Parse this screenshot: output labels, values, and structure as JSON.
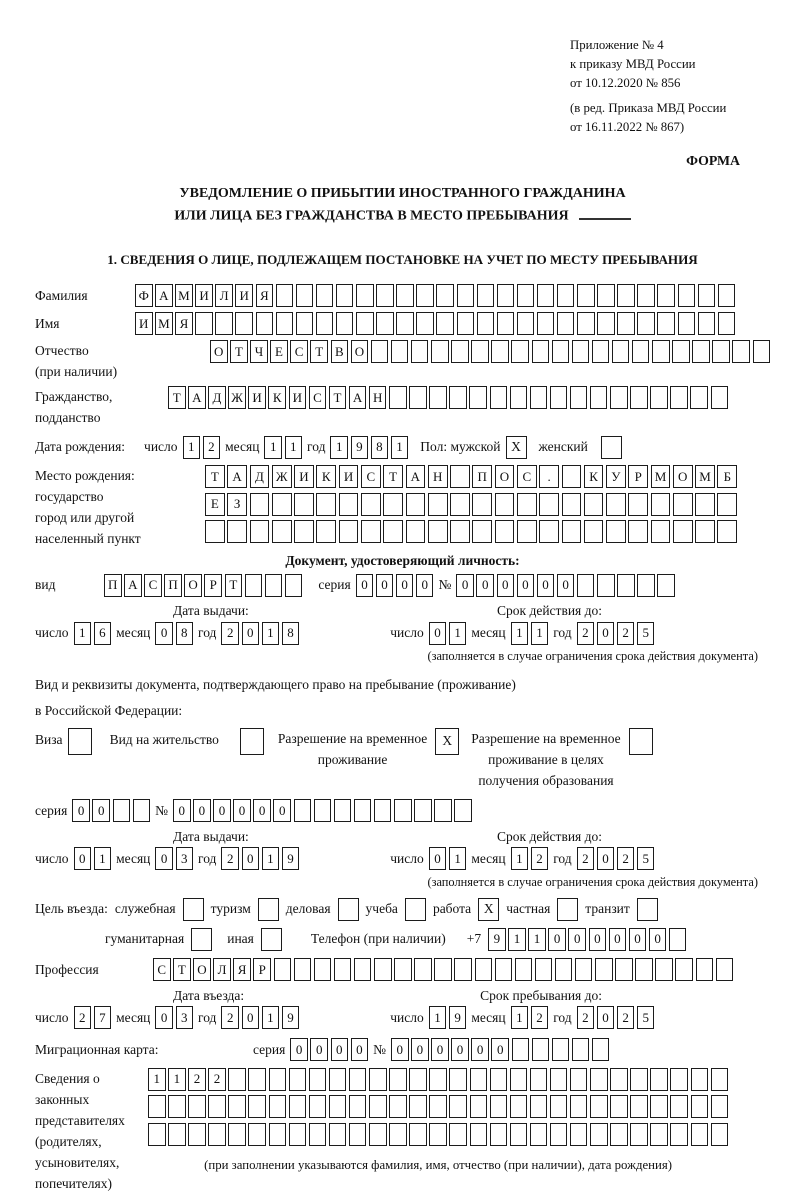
{
  "header": {
    "line1": "Приложение № 4",
    "line2": "к приказу МВД России",
    "line3": "от 10.12.2020 № 856",
    "line4": "(в ред. Приказа МВД России",
    "line5": "от 16.11.2022 № 867)",
    "forma": "ФОРМА"
  },
  "title": {
    "line1": "УВЕДОМЛЕНИЕ О ПРИБЫТИИ ИНОСТРАННОГО ГРАЖДАНИНА",
    "line2": "ИЛИ ЛИЦА БЕЗ ГРАЖДАНСТВА В МЕСТО ПРЕБЫВАНИЯ"
  },
  "section1": "1. СВЕДЕНИЯ О ЛИЦЕ, ПОДЛЕЖАЩЕМ ПОСТАНОВКЕ НА УЧЕТ ПО МЕСТУ ПРЕБЫВАНИЯ",
  "labels": {
    "surname": "Фамилия",
    "given_name": "Имя",
    "patronymic": "Отчество",
    "patronymic_note": "(при наличии)",
    "citizenship1": "Гражданство,",
    "citizenship2": "подданство",
    "birth_date": "Дата рождения:",
    "day": "число",
    "month": "месяц",
    "year": "год",
    "gender": "Пол: мужской",
    "female": "женский",
    "birthplace": "Место рождения:",
    "state": "государство",
    "city1": "город или другой",
    "city2": "населенный пункт",
    "id_doc_heading": "Документ, удостоверяющий личность:",
    "doc_type": "вид",
    "series": "серия",
    "number": "№",
    "issue_date": "Дата выдачи:",
    "expiry_date": "Срок действия до:",
    "expiry_note": "(заполняется в случае ограничения срока действия документа)",
    "res_doc_line1": "Вид и реквизиты документа, подтверждающего право на пребывание (проживание)",
    "res_doc_line2": "в Российской Федерации:",
    "visa": "Виза",
    "residence_permit": "Вид на жительство",
    "temp_res_1": "Разрешение на временное",
    "temp_res_2": "проживание",
    "temp_res_edu_1": "Разрешение на временное",
    "temp_res_edu_2": "проживание в целях",
    "temp_res_edu_3": "получения образования",
    "purpose": "Цель въезда:",
    "p_business": "служебная",
    "p_tourism": "туризм",
    "p_commercial": "деловая",
    "p_study": "учеба",
    "p_work": "работа",
    "p_private": "частная",
    "p_transit": "транзит",
    "p_humanitarian": "гуманитарная",
    "p_other": "иная",
    "phone": "Телефон (при наличии)",
    "phone_prefix": "+7",
    "profession": "Профессия",
    "entry_date": "Дата въезда:",
    "stay_until": "Срок пребывания до:",
    "mig_card": "Миграционная карта:",
    "rep1": "Сведения о",
    "rep2": "законных",
    "rep3": "представителях",
    "rep4": "(родителях,",
    "rep5": "усыновителях,",
    "rep6": "попечителях)",
    "rep_note": "(при заполнении указываются фамилия, имя, отчество (при наличии), дата рождения)"
  },
  "boxes": {
    "surname": {
      "value": "ФАМИЛИЯ",
      "count": 30
    },
    "given_name": {
      "value": "ИМЯ",
      "count": 30
    },
    "patronymic": {
      "value": "ОТЧЕСТВО",
      "count": 28
    },
    "citizenship": {
      "value": "ТАДЖИКИСТАН",
      "count": 28
    },
    "birth_day": {
      "value": "12",
      "count": 2
    },
    "birth_month": {
      "value": "11",
      "count": 2
    },
    "birth_year": {
      "value": "1981",
      "count": 4
    },
    "birthplace_row1": {
      "value": "ТАДЖИКИСТАН ПОС. КУРМОМБ",
      "count": 24
    },
    "birthplace_row2": {
      "value": "ЕЗ",
      "count": 24
    },
    "birthplace_row3": {
      "value": "",
      "count": 24
    },
    "id_doc_type": {
      "value": "ПАСПОРТ",
      "count": 10
    },
    "id_doc_series": {
      "value": "0000",
      "count": 4
    },
    "id_doc_number": {
      "value": "000000",
      "count": 11
    },
    "id_issue_day": {
      "value": "16",
      "count": 2
    },
    "id_issue_month": {
      "value": "08",
      "count": 2
    },
    "id_issue_year": {
      "value": "2018",
      "count": 4
    },
    "id_expiry_day": {
      "value": "01",
      "count": 2
    },
    "id_expiry_month": {
      "value": "11",
      "count": 2
    },
    "id_expiry_year": {
      "value": "2025",
      "count": 4
    },
    "res_series": {
      "value": "00",
      "count": 4
    },
    "res_number": {
      "value": "000000",
      "count": 15
    },
    "res_issue_day": {
      "value": "01",
      "count": 2
    },
    "res_issue_month": {
      "value": "03",
      "count": 2
    },
    "res_issue_year": {
      "value": "2019",
      "count": 4
    },
    "res_expiry_day": {
      "value": "01",
      "count": 2
    },
    "res_expiry_month": {
      "value": "12",
      "count": 2
    },
    "res_expiry_year": {
      "value": "2025",
      "count": 4
    },
    "phone": {
      "value": "911000000",
      "count": 10
    },
    "profession": {
      "value": "СТОЛЯР",
      "count": 29
    },
    "entry_day": {
      "value": "27",
      "count": 2
    },
    "entry_month": {
      "value": "03",
      "count": 2
    },
    "entry_year": {
      "value": "2019",
      "count": 4
    },
    "stay_day": {
      "value": "19",
      "count": 2
    },
    "stay_month": {
      "value": "12",
      "count": 2
    },
    "stay_year": {
      "value": "2025",
      "count": 4
    },
    "mig_series": {
      "value": "0000",
      "count": 4
    },
    "mig_number": {
      "value": "000000",
      "count": 11
    },
    "rep_row1": {
      "value": "1122",
      "count": 29
    },
    "rep_row2": {
      "value": "",
      "count": 29
    },
    "rep_row3": {
      "value": "",
      "count": 29
    }
  },
  "checks": {
    "gender_male": "X",
    "gender_female": "",
    "visa": "",
    "residence_permit": "",
    "temp_residence": "X",
    "temp_residence_edu": "",
    "purpose_business": "",
    "purpose_tourism": "",
    "purpose_commercial": "",
    "purpose_study": "",
    "purpose_work": "X",
    "purpose_private": "",
    "purpose_transit": "",
    "purpose_humanitarian": "",
    "purpose_other": ""
  }
}
